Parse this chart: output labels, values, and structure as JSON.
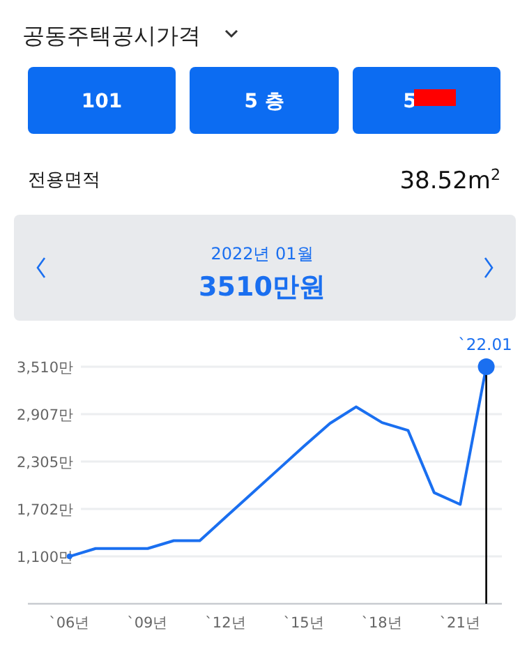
{
  "chart_data": {
    "type": "line",
    "title": "공동주택공시가격",
    "annotations": [
      "101",
      "5 층",
      "5",
      "전용면적",
      "38.52m$^{2}$",
      "2022년 01월",
      "3510만원",
      {
        "text": "`22.01",
        "y": 3510
      }
    ],
    "categories": [
      "`06년",
      null,
      null,
      "`09년",
      null,
      null,
      "`12년",
      null,
      null,
      "`15년",
      null,
      null,
      "`18년",
      null,
      null,
      "`21년",
      null
    ],
    "series": [
      {
        "color": "#1a6ff0",
        "values": [
          1100,
          1200,
          1200,
          1200,
          1300,
          1300,
          1600,
          1900,
          2200,
          2500,
          2790,
          3000,
          2800,
          2700,
          1910,
          1760,
          3510
        ]
      }
    ],
    "ylim": [
      498,
      3510
    ],
    "yticks": [
      {
        "value": 1100,
        "label": "1,100만"
      },
      {
        "value": 1702,
        "label": "1,702만"
      },
      {
        "value": 2305,
        "label": "2,305만"
      },
      {
        "value": 2907,
        "label": "2,907만"
      },
      {
        "value": 3510,
        "label": "3,510만"
      }
    ],
    "grid": "y"
  }
}
